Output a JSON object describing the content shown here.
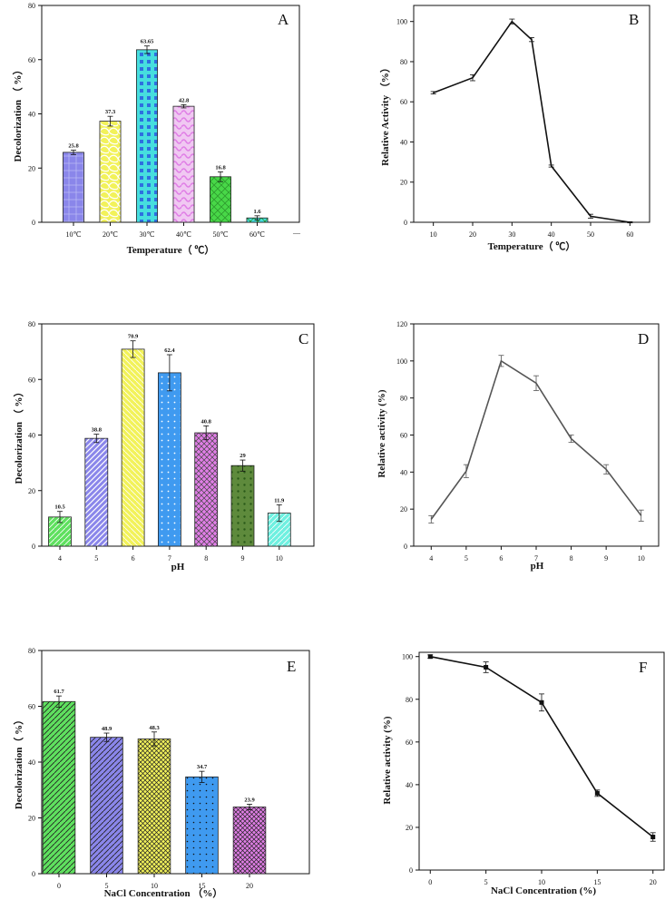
{
  "chart_data": [
    {
      "panel": "A",
      "type": "bar",
      "categories": [
        "10℃",
        "20℃",
        "30℃",
        "40℃",
        "50℃",
        "60℃"
      ],
      "values": [
        25.8,
        37.3,
        63.65,
        42.8,
        16.8,
        1.6
      ],
      "data_labels": [
        "25.8",
        "37.3",
        "63.65",
        "42.8",
        "16.8",
        "1.6"
      ],
      "errors": [
        0.8,
        1.8,
        1.4,
        0.6,
        1.8,
        0.8
      ],
      "colors": [
        "#8a86ea",
        "#f2f25a",
        "#46dede",
        "#e07ee6",
        "#48d848",
        "#46dede"
      ],
      "xlabel": "Temperature（ ℃）",
      "ylabel": "Decolorization （ %）",
      "ylim": [
        0,
        80
      ],
      "yticks": [
        "0",
        "20",
        "40",
        "60",
        "80"
      ],
      "extra_xtick": "—"
    },
    {
      "panel": "B",
      "type": "line",
      "x": [
        10,
        20,
        30,
        35,
        40,
        50,
        60
      ],
      "values": [
        64.5,
        72,
        100,
        91,
        28,
        3,
        0
      ],
      "errors": [
        0.6,
        1.5,
        1.2,
        1,
        0.5,
        1,
        0.3
      ],
      "xlabel": "Temperature（ ℃）",
      "ylabel": "Relative  Activity （%）",
      "xlim": [
        5,
        65
      ],
      "xticks": [
        "10",
        "20",
        "30",
        "40",
        "50",
        "60"
      ],
      "ylim": [
        0,
        108
      ],
      "yticks": [
        "0",
        "20",
        "40",
        "60",
        "80",
        "100"
      ],
      "line_color": "#111111"
    },
    {
      "panel": "C",
      "type": "bar",
      "categories": [
        "4",
        "5",
        "6",
        "7",
        "8",
        "9",
        "10"
      ],
      "values": [
        10.5,
        38.8,
        70.9,
        62.4,
        40.8,
        29,
        11.9
      ],
      "data_labels": [
        "10.5",
        "38.8",
        "70.9",
        "62.4",
        "40.8",
        "29",
        "11.9"
      ],
      "errors": [
        2,
        1.5,
        3,
        6.5,
        2.5,
        2,
        3
      ],
      "colors": [
        "#5fe05f",
        "#8a86ea",
        "#f2f25a",
        "#3f9af0",
        "#e07ee6",
        "#5e8a3c",
        "#6ff0e0"
      ],
      "xlabel": "pH",
      "ylabel": "Decolorization （ %）",
      "ylim": [
        0,
        80
      ],
      "yticks": [
        "0",
        "20",
        "40",
        "60",
        "80"
      ]
    },
    {
      "panel": "D",
      "type": "line",
      "x": [
        4,
        5,
        6,
        7,
        8,
        9,
        10
      ],
      "values": [
        14.5,
        40.5,
        100,
        88,
        58,
        41.5,
        16.5
      ],
      "errors": [
        2,
        3.5,
        3,
        4,
        2,
        2.5,
        3
      ],
      "xlabel": "pH",
      "ylabel": "Relative activity (%)",
      "xlim": [
        3.5,
        10.5
      ],
      "xticks": [
        "4",
        "5",
        "6",
        "7",
        "8",
        "9",
        "10"
      ],
      "ylim": [
        0,
        120
      ],
      "yticks": [
        "0",
        "20",
        "40",
        "60",
        "80",
        "100",
        "120"
      ],
      "line_color": "#555555"
    },
    {
      "panel": "E",
      "type": "bar",
      "categories": [
        "0",
        "5",
        "10",
        "15",
        "20"
      ],
      "values": [
        61.7,
        48.9,
        48.3,
        34.7,
        23.9
      ],
      "data_labels": [
        "61.7",
        "48.9",
        "48.3",
        "34.7",
        "23.9"
      ],
      "errors": [
        2,
        1.5,
        2.5,
        2,
        1
      ],
      "colors": [
        "#5fe05f",
        "#8a86ea",
        "#f2f25a",
        "#3f9af0",
        "#e07ee6"
      ],
      "xlabel": "NaCl Concentration （%）",
      "ylabel": "Decolorization（ %）",
      "ylim": [
        0,
        80
      ],
      "yticks": [
        "0",
        "20",
        "40",
        "60",
        "80"
      ]
    },
    {
      "panel": "F",
      "type": "line",
      "x": [
        0,
        5,
        10,
        15,
        20
      ],
      "values": [
        100,
        95,
        78.5,
        36,
        15.5
      ],
      "errors": [
        0.8,
        2.5,
        4,
        1.5,
        2
      ],
      "xlabel": "NaCl Concentration (%)",
      "ylabel": "Relative activity (%)",
      "xlim": [
        -1,
        21
      ],
      "xticks": [
        "0",
        "5",
        "10",
        "15",
        "20"
      ],
      "ylim": [
        0,
        102
      ],
      "yticks": [
        "0",
        "20",
        "40",
        "60",
        "80",
        "100"
      ],
      "line_color": "#111111",
      "markers": true
    }
  ]
}
